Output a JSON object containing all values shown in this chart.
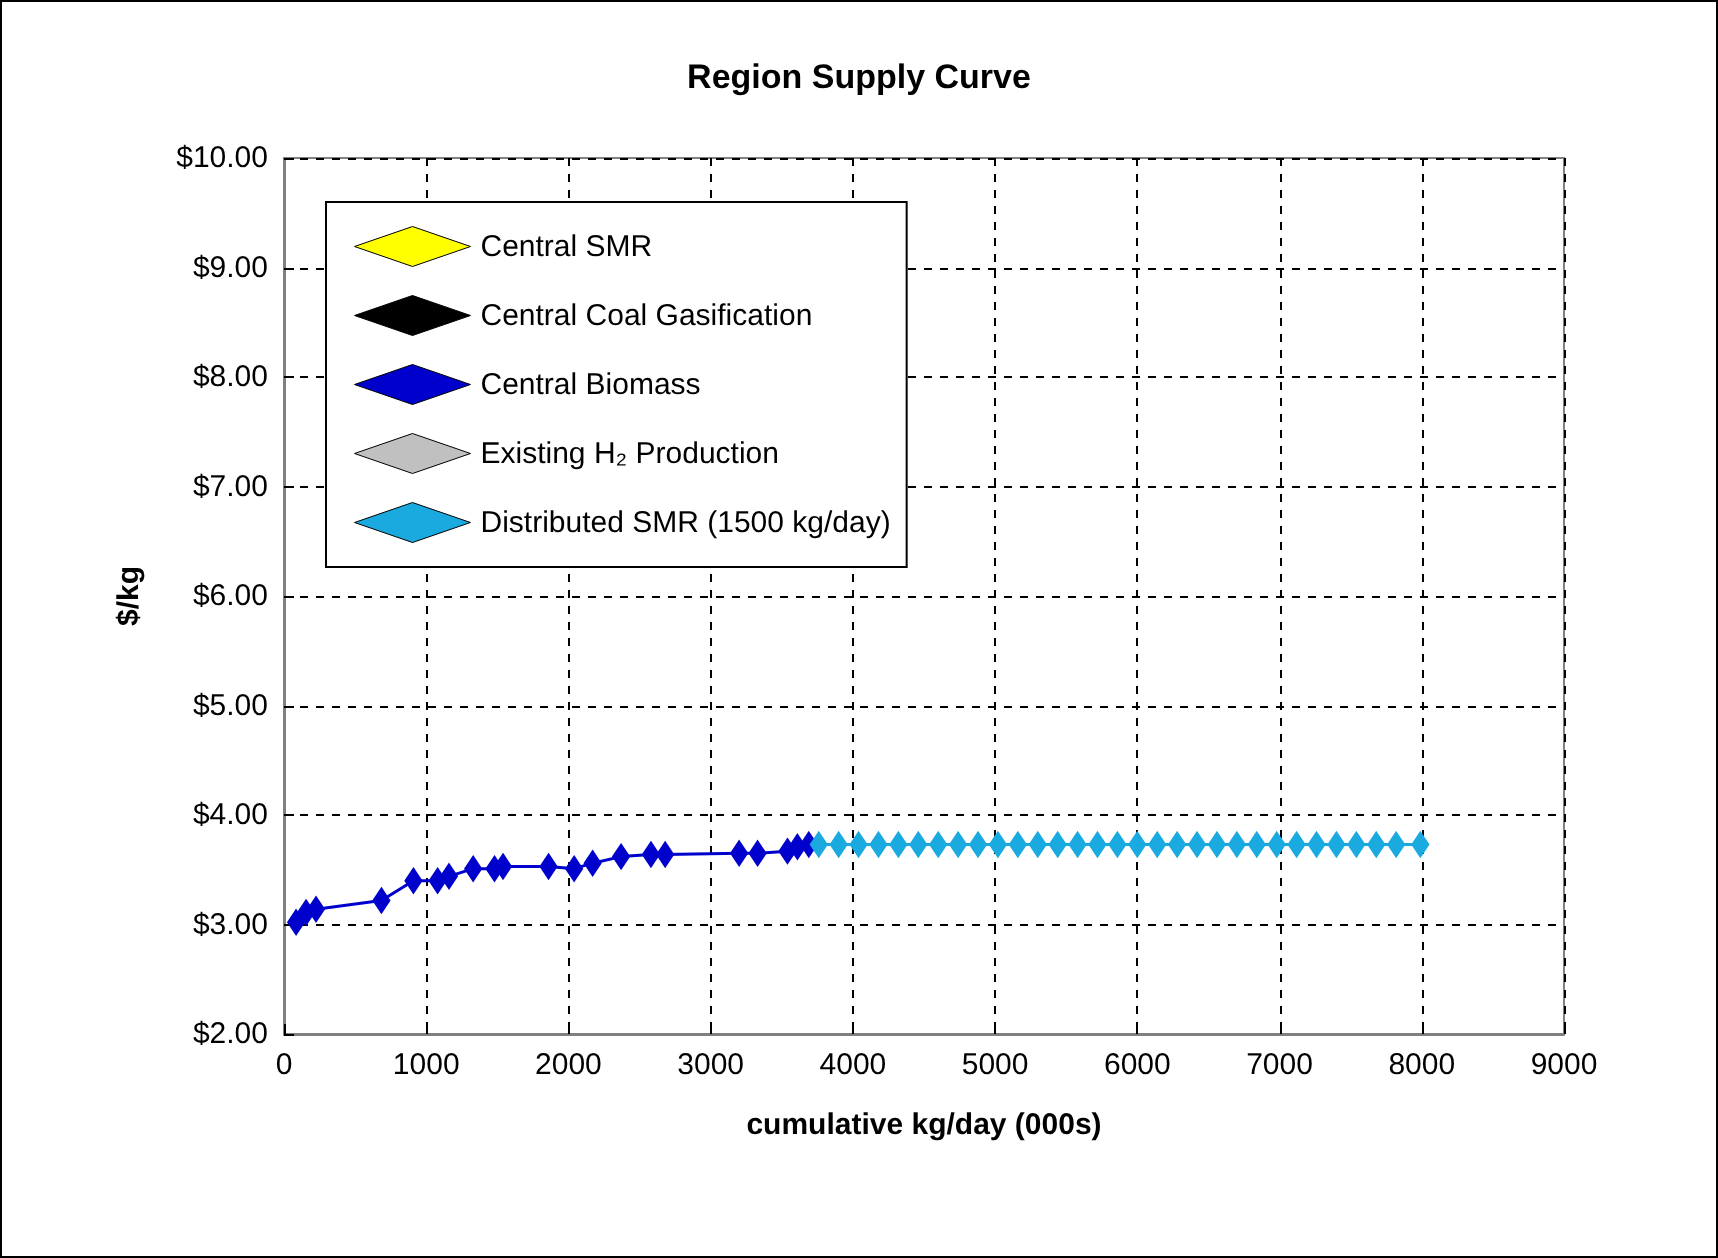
{
  "chart_data": {
    "type": "line",
    "title": "Region Supply Curve",
    "xlabel": "cumulative kg/day (000s)",
    "ylabel": "$/kg",
    "xlim": [
      0,
      9000
    ],
    "xticks": [
      0,
      1000,
      2000,
      3000,
      4000,
      5000,
      6000,
      7000,
      8000,
      9000
    ],
    "ylim": [
      2,
      10
    ],
    "yticks": [
      {
        "value": 2,
        "label": "$2.00"
      },
      {
        "value": 3,
        "label": "$3.00"
      },
      {
        "value": 4,
        "label": "$4.00"
      },
      {
        "value": 5,
        "label": "$5.00"
      },
      {
        "value": 6,
        "label": "$6.00"
      },
      {
        "value": 7,
        "label": "$7.00"
      },
      {
        "value": 8,
        "label": "$8.00"
      },
      {
        "value": 9,
        "label": "$9.00"
      },
      {
        "value": 10,
        "label": "$10.00"
      }
    ],
    "grid": true,
    "legend": "top left",
    "marker": "diamond",
    "line_style": "solid",
    "series": [
      {
        "name": "Central SMR",
        "color": "#ffff00"
      },
      {
        "name": "Central Coal Gasification",
        "color": "#000000"
      },
      {
        "name": "Central Biomass",
        "color": "#0000cc",
        "x": [
          85,
          155,
          225,
          685,
          910,
          1080,
          1160,
          1330,
          1480,
          1540,
          1860,
          2040,
          2170,
          2370,
          2580,
          2680,
          3200,
          3330,
          3540,
          3610,
          3690
        ],
        "values": [
          3.02,
          3.11,
          3.14,
          3.22,
          3.4,
          3.4,
          3.44,
          3.51,
          3.51,
          3.53,
          3.53,
          3.51,
          3.56,
          3.62,
          3.64,
          3.64,
          3.65,
          3.65,
          3.67,
          3.71,
          3.73
        ]
      },
      {
        "name": "Existing H₂ Production",
        "color": "#c0c0c0"
      },
      {
        "name": "Distributed SMR (1500 kg/day)",
        "color": "#1aaae0",
        "x": [
          3760,
          3900,
          4040,
          4180,
          4320,
          4460,
          4600,
          4740,
          4880,
          5020,
          5160,
          5300,
          5440,
          5580,
          5720,
          5860,
          6000,
          6140,
          6280,
          6420,
          6560,
          6700,
          6840,
          6980,
          7120,
          7260,
          7400,
          7540,
          7680,
          7820,
          7990
        ],
        "values": [
          3.73,
          3.73,
          3.73,
          3.73,
          3.73,
          3.73,
          3.73,
          3.73,
          3.73,
          3.73,
          3.73,
          3.73,
          3.73,
          3.73,
          3.73,
          3.73,
          3.73,
          3.73,
          3.73,
          3.73,
          3.73,
          3.73,
          3.73,
          3.73,
          3.73,
          3.73,
          3.73,
          3.73,
          3.73,
          3.73,
          3.73
        ]
      }
    ]
  }
}
